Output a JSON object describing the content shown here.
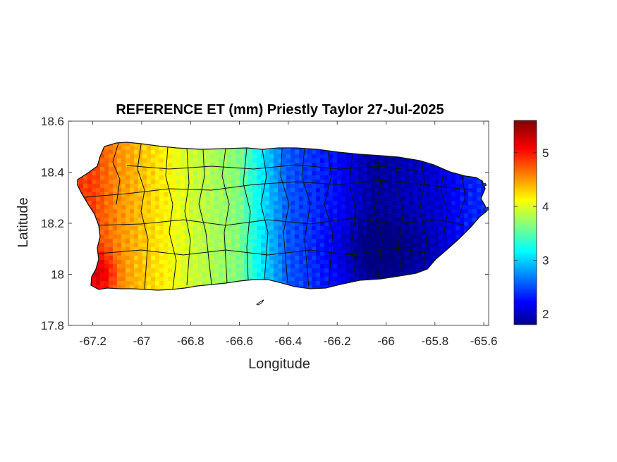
{
  "chart_data": {
    "type": "heatmap",
    "title": "REFERENCE ET (mm) Priestly Taylor 27-Jul-2025",
    "xlabel": "Longitude",
    "ylabel": "Latitude",
    "xlim": [
      -67.3,
      -65.58
    ],
    "ylim": [
      17.8,
      18.6
    ],
    "x_ticks": [
      "-67.2",
      "-67",
      "-66.8",
      "-66.6",
      "-66.4",
      "-66.2",
      "-66",
      "-65.8",
      "-65.6"
    ],
    "y_ticks": [
      "17.8",
      "18",
      "18.2",
      "18.4",
      "18.6"
    ],
    "colorbar": {
      "colormap": "jet",
      "range": [
        1.8,
        5.6
      ],
      "ticks": [
        "2",
        "3",
        "4",
        "5"
      ]
    },
    "field_profile": [
      {
        "lon": -67.2,
        "value": 4.9
      },
      {
        "lon": -67.1,
        "value": 4.6
      },
      {
        "lon": -67.0,
        "value": 4.4
      },
      {
        "lon": -66.8,
        "value": 4.0
      },
      {
        "lon": -66.6,
        "value": 3.7
      },
      {
        "lon": -66.5,
        "value": 3.1
      },
      {
        "lon": -66.4,
        "value": 2.6
      },
      {
        "lon": -66.2,
        "value": 2.3
      },
      {
        "lon": -66.05,
        "value": 1.9
      },
      {
        "lon": -65.8,
        "value": 2.1
      },
      {
        "lon": -65.65,
        "value": 2.4
      }
    ]
  }
}
